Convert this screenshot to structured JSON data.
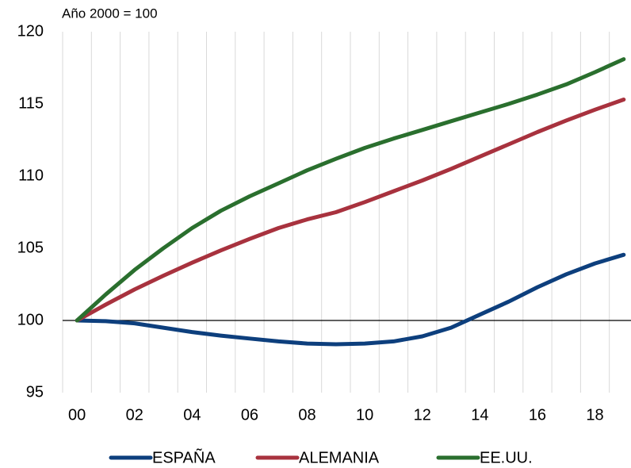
{
  "chart_data": {
    "type": "line",
    "subtitle": "Año 2000 = 100",
    "categories": [
      "00",
      null,
      "02",
      null,
      "04",
      null,
      "06",
      null,
      "08",
      null,
      "10",
      null,
      "12",
      null,
      "14",
      null,
      "16",
      null,
      "18",
      null
    ],
    "series": [
      {
        "name": "ESPAÑA",
        "color": "#0d3f7d",
        "values": [
          100,
          99.95,
          99.8,
          99.5,
          99.2,
          98.95,
          98.75,
          98.55,
          98.4,
          98.35,
          98.4,
          98.55,
          98.9,
          99.5,
          100.4,
          101.3,
          102.3,
          103.2,
          103.95,
          104.55
        ]
      },
      {
        "name": "ALEMANIA",
        "color": "#a8323e",
        "values": [
          100,
          101.1,
          102.15,
          103.1,
          104.0,
          104.85,
          105.65,
          106.4,
          107.0,
          107.5,
          108.2,
          108.95,
          109.7,
          110.5,
          111.35,
          112.2,
          113.05,
          113.85,
          114.6,
          115.3
        ]
      },
      {
        "name": "EE.UU.",
        "color": "#2a6f2e",
        "values": [
          100,
          101.8,
          103.5,
          105.0,
          106.4,
          107.6,
          108.6,
          109.5,
          110.4,
          111.2,
          111.95,
          112.6,
          113.2,
          113.8,
          114.4,
          115.0,
          115.65,
          116.35,
          117.2,
          118.1
        ]
      }
    ],
    "ylim": [
      95,
      120
    ],
    "yticks": [
      95,
      100,
      105,
      110,
      115,
      120
    ],
    "reference_line": 100,
    "grid": true,
    "legend": "bottom"
  }
}
